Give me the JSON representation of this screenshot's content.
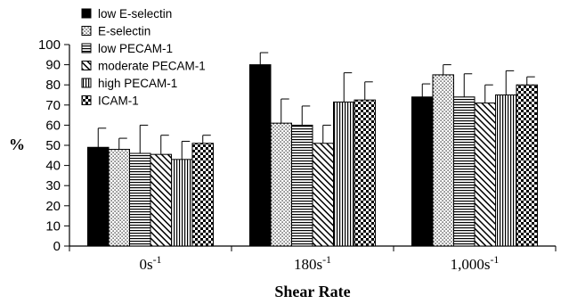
{
  "chart_data": {
    "type": "bar",
    "title": "",
    "xlabel": "Shear Rate",
    "ylabel": "%",
    "ylim": [
      0,
      100
    ],
    "yticks": [
      0,
      10,
      20,
      30,
      40,
      50,
      60,
      70,
      80,
      90,
      100
    ],
    "categories": [
      {
        "base": "0s",
        "sup": "-1"
      },
      {
        "base": "180s",
        "sup": "-1"
      },
      {
        "base": "1,000s",
        "sup": "-1"
      }
    ],
    "legend_position": "top-left",
    "series": [
      {
        "name": "low E-selectin",
        "pattern": "solid-black",
        "values": [
          49,
          90,
          74
        ],
        "errors": [
          9.5,
          6,
          6.5
        ]
      },
      {
        "name": "E-selectin",
        "pattern": "dots",
        "values": [
          48,
          61,
          85
        ],
        "errors": [
          5.5,
          12,
          5
        ]
      },
      {
        "name": "low PECAM-1",
        "pattern": "horizontal-lines",
        "values": [
          46,
          60,
          74
        ],
        "errors": [
          14,
          9.5,
          11.5
        ]
      },
      {
        "name": "moderate PECAM-1",
        "pattern": "diagonal-lines",
        "values": [
          45.5,
          51,
          71
        ],
        "errors": [
          9.5,
          9,
          9
        ]
      },
      {
        "name": "high PECAM-1",
        "pattern": "vertical-lines",
        "values": [
          43,
          71.5,
          75
        ],
        "errors": [
          9,
          14.5,
          12
        ]
      },
      {
        "name": "ICAM-1",
        "pattern": "checkerboard",
        "values": [
          51,
          72.5,
          80
        ],
        "errors": [
          4,
          9,
          4
        ]
      }
    ]
  }
}
